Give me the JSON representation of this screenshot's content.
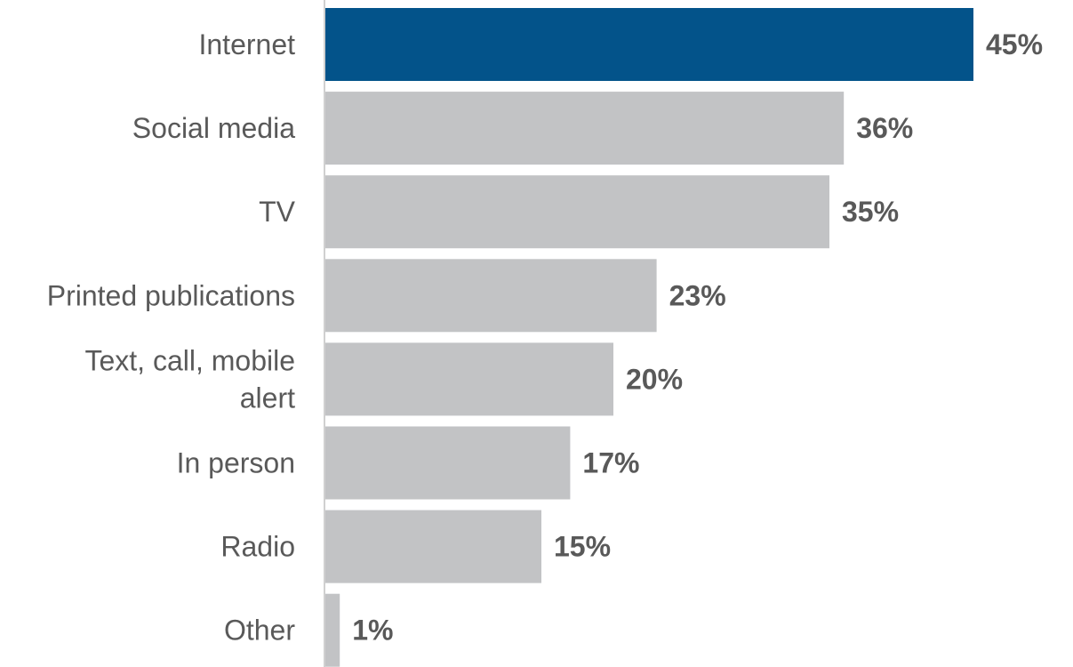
{
  "chart_data": {
    "type": "bar",
    "orientation": "horizontal",
    "categories": [
      "Internet",
      "Social media",
      "TV",
      "Printed publications",
      "Text, call, mobile alert",
      "In person",
      "Radio",
      "Other"
    ],
    "category_lines": [
      [
        "Internet"
      ],
      [
        "Social media"
      ],
      [
        "TV"
      ],
      [
        "Printed publications"
      ],
      [
        "Text, call, mobile",
        "alert"
      ],
      [
        "In person"
      ],
      [
        "Radio"
      ],
      [
        "Other"
      ]
    ],
    "values": [
      45,
      36,
      35,
      23,
      20,
      17,
      15,
      1
    ],
    "value_labels": [
      "45%",
      "36%",
      "35%",
      "23%",
      "20%",
      "17%",
      "15%",
      "1%"
    ],
    "value_unit": "%",
    "xlim": [
      0,
      45
    ],
    "highlight_index": 0,
    "grid": false,
    "legend": "none"
  },
  "colors": {
    "highlight": "#03538a",
    "bar": "#c2c3c5",
    "axis": "#d0d0d0",
    "label_text": "#595959"
  }
}
